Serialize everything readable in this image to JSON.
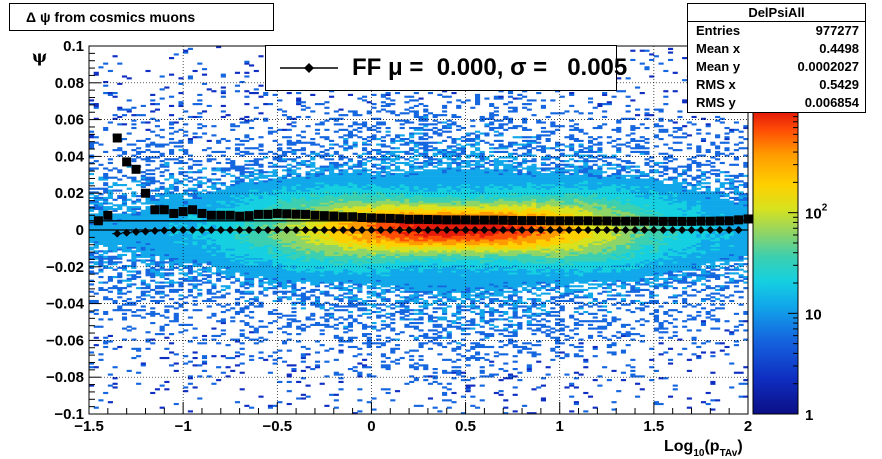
{
  "title": "Δ ψ from cosmics muons",
  "stats": {
    "name": "DelPsiAll",
    "rows": [
      {
        "label": "Entries",
        "value": "977277"
      },
      {
        "label": "Mean x",
        "value": "0.4498"
      },
      {
        "label": "Mean y",
        "value": "0.0002027"
      },
      {
        "label": "RMS x",
        "value": "0.5429"
      },
      {
        "label": "RMS y",
        "value": "0.006854"
      }
    ]
  },
  "legend": {
    "label": "FF μ =  0.000, σ =   0.005"
  },
  "colors": {
    "series": "#000000",
    "frame": "#000000",
    "grid": "#000000"
  },
  "chart_data": {
    "type": "heatmap",
    "xlabel": "Log",
    "xlabel_sub": "10",
    "xlabel_rest": "(p",
    "xlabel_sub2": "TAv",
    "xlabel_end": ")",
    "ylabel": "ψ",
    "xlim": [
      -1.5,
      2.0
    ],
    "ylim": [
      -0.1,
      0.1
    ],
    "xticks": [
      {
        "v": -1.5,
        "label": "−1.5"
      },
      {
        "v": -1.0,
        "label": "−1"
      },
      {
        "v": -0.5,
        "label": "−0.5"
      },
      {
        "v": 0,
        "label": "0"
      },
      {
        "v": 0.5,
        "label": "0.5"
      },
      {
        "v": 1.0,
        "label": "1"
      },
      {
        "v": 1.5,
        "label": "1.5"
      },
      {
        "v": 2.0,
        "label": "2"
      }
    ],
    "yticks": [
      {
        "v": 0.1,
        "label": "0.1"
      },
      {
        "v": 0.08,
        "label": "0.08"
      },
      {
        "v": 0.06,
        "label": "0.06"
      },
      {
        "v": 0.04,
        "label": "0.04"
      },
      {
        "v": 0.02,
        "label": "0.02"
      },
      {
        "v": 0,
        "label": "0"
      },
      {
        "v": -0.02,
        "label": "−0.02"
      },
      {
        "v": -0.04,
        "label": "−0.04"
      },
      {
        "v": -0.06,
        "label": "−0.06"
      },
      {
        "v": -0.08,
        "label": "−0.08"
      },
      {
        "v": -0.1,
        "label": "−0.1"
      }
    ],
    "grid": true,
    "z_scale": "log",
    "zlim": [
      1,
      1000
    ],
    "zticks": [
      {
        "v": 1,
        "label": "1"
      },
      {
        "v": 10,
        "label": "10"
      },
      {
        "v": 100,
        "label": "10",
        "sup": "2"
      }
    ],
    "series": [
      {
        "name": "FF",
        "marker": "diamond",
        "x": [
          -1.35,
          -1.3,
          -1.25,
          -1.2,
          -1.15,
          -1.1,
          -1.05,
          -1.0,
          -0.95,
          -0.9,
          -0.85,
          -0.8,
          -0.75,
          -0.7,
          -0.65,
          -0.6,
          -0.55,
          -0.5,
          -0.45,
          -0.4,
          -0.35,
          -0.3,
          -0.25,
          -0.2,
          -0.15,
          -0.1,
          -0.05,
          0.0,
          0.05,
          0.1,
          0.15,
          0.2,
          0.25,
          0.3,
          0.35,
          0.4,
          0.45,
          0.5,
          0.55,
          0.6,
          0.65,
          0.7,
          0.75,
          0.8,
          0.85,
          0.9,
          0.95,
          1.0,
          1.05,
          1.1,
          1.15,
          1.2,
          1.25,
          1.3,
          1.35,
          1.4,
          1.45,
          1.5,
          1.55,
          1.6,
          1.65,
          1.7,
          1.75,
          1.8,
          1.85,
          1.9,
          1.95
        ],
        "y": [
          -0.002,
          -0.0015,
          -0.001,
          -0.0008,
          -0.0005,
          -0.0003,
          0.0,
          0.0,
          0.0,
          0.0,
          0.0,
          0.0,
          0.0,
          0.0,
          0.0,
          0.0,
          0.0,
          0.0,
          0.0,
          0.0,
          0.0,
          0.0,
          0.0,
          0.0,
          0.0,
          0.0,
          0.0,
          0.0,
          0.0,
          0.0,
          0.0,
          0.0,
          0.0,
          0.0,
          0.0,
          0.0,
          0.0,
          0.0,
          0.0,
          0.0,
          0.0,
          0.0,
          0.0,
          0.0,
          0.0,
          0.0,
          0.0,
          0.0,
          0.0,
          0.0,
          0.0,
          0.0,
          0.0,
          0.0,
          0.0,
          0.0,
          0.0,
          0.0,
          0.0,
          0.0,
          0.0,
          0.0,
          0.0,
          0.0,
          0.0,
          0.0,
          0.0
        ]
      },
      {
        "name": "",
        "marker": "square",
        "x": [
          -1.45,
          -1.4,
          -1.35,
          -1.3,
          -1.25,
          -1.2,
          -1.15,
          -1.1,
          -1.05,
          -1.0,
          -0.95,
          -0.9,
          -0.85,
          -0.8,
          -0.75,
          -0.7,
          -0.65,
          -0.6,
          -0.55,
          -0.5,
          -0.45,
          -0.4,
          -0.35,
          -0.3,
          -0.25,
          -0.2,
          -0.15,
          -0.1,
          -0.05,
          0.0,
          0.05,
          0.1,
          0.15,
          0.2,
          0.25,
          0.3,
          0.35,
          0.4,
          0.45,
          0.5,
          0.55,
          0.6,
          0.65,
          0.7,
          0.75,
          0.8,
          0.85,
          0.9,
          0.95,
          1.0,
          1.05,
          1.1,
          1.15,
          1.2,
          1.25,
          1.3,
          1.35,
          1.4,
          1.45,
          1.5,
          1.55,
          1.6,
          1.65,
          1.7,
          1.75,
          1.8,
          1.85,
          1.9,
          1.95,
          2.0
        ],
        "y": [
          0.005,
          0.008,
          0.05,
          0.037,
          0.033,
          0.02,
          0.011,
          0.011,
          0.009,
          0.01,
          0.011,
          0.009,
          0.008,
          0.008,
          0.008,
          0.0075,
          0.0078,
          0.0085,
          0.0085,
          0.009,
          0.0088,
          0.0086,
          0.0085,
          0.008,
          0.0078,
          0.0076,
          0.0072,
          0.0072,
          0.0068,
          0.0066,
          0.0064,
          0.0063,
          0.0061,
          0.0058,
          0.0058,
          0.0057,
          0.0056,
          0.0055,
          0.0055,
          0.0055,
          0.0054,
          0.0054,
          0.0054,
          0.0053,
          0.0052,
          0.0051,
          0.0051,
          0.0051,
          0.005,
          0.005,
          0.005,
          0.005,
          0.005,
          0.0049,
          0.0049,
          0.0048,
          0.0048,
          0.0048,
          0.0048,
          0.0048,
          0.0047,
          0.0047,
          0.0047,
          0.0047,
          0.0048,
          0.0048,
          0.0049,
          0.005,
          0.0055,
          0.006
        ]
      }
    ]
  }
}
